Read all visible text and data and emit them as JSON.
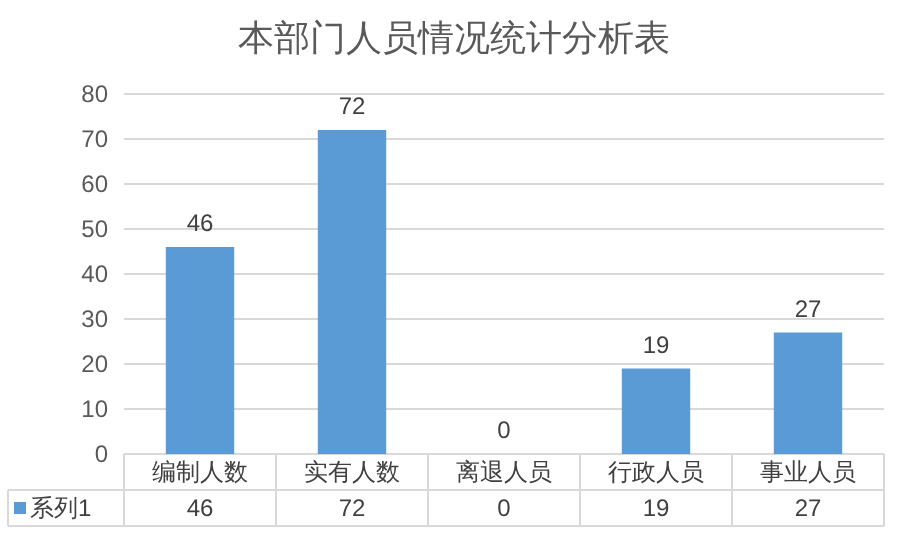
{
  "chart_data": {
    "type": "bar",
    "title": "本部门人员情况统计分析表",
    "categories": [
      "编制人数",
      "实有人数",
      "离退人员",
      "行政人员",
      "事业人员"
    ],
    "series": [
      {
        "name": "系列1",
        "color": "#5b9bd5",
        "values": [
          46,
          72,
          0,
          19,
          27
        ],
        "value_labels": [
          "46",
          "72",
          "0",
          "19",
          "27"
        ]
      }
    ],
    "ylim": [
      0,
      80
    ],
    "yticks": [
      0,
      10,
      20,
      30,
      40,
      50,
      60,
      70,
      80
    ],
    "annotations": [
      "46",
      "72",
      "0",
      "19",
      "27"
    ],
    "grid": "y",
    "data_labels": true,
    "legend": "bottom"
  }
}
